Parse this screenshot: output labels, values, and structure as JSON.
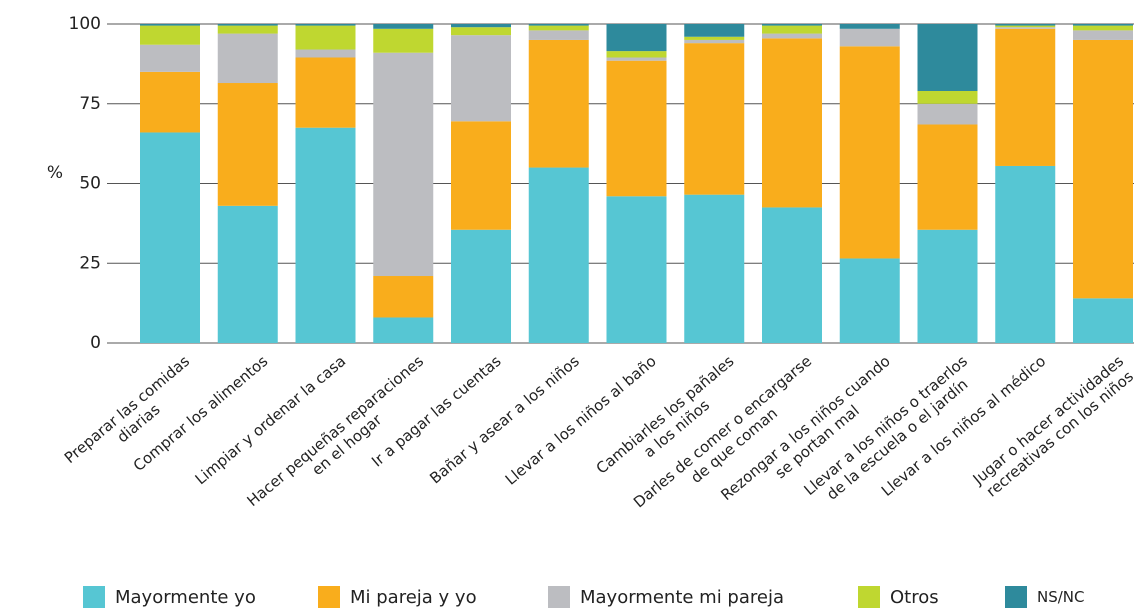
{
  "chart_data": {
    "type": "stacked_bar",
    "y_label": "%",
    "categories": [
      "Preparar las comidas\ndiarias",
      "Comprar los alimentos",
      "Limpiar y ordenar la casa",
      "Hacer pequeñas reparaciones\nen el hogar",
      "Ir a pagar las cuentas",
      "Bañar y asear a los niños",
      "Llevar a los niños al baño",
      "Cambiarles los pañales\na los niños",
      "Darles de comer o encargarse\nde que coman",
      "Rezongar a los niños cuando\nse portan mal",
      "Llevar a los niños o traerlos\nde la escuela o el jardín",
      "Llevar a los niños al médico",
      "Jugar o hacer actividades\nrecreativas con los niños"
    ],
    "series": [
      {
        "name": "Mayormente yo",
        "color": "#56c6d3",
        "values": [
          66,
          43,
          67.5,
          8,
          35.5,
          55,
          46,
          46.5,
          42.5,
          26.5,
          35.5,
          55.5,
          14
        ]
      },
      {
        "name": "Mi pareja y yo",
        "color": "#f9ad1c",
        "values": [
          19,
          38.5,
          22,
          13,
          34,
          40,
          42.5,
          47.5,
          53,
          66.5,
          33,
          43,
          81
        ]
      },
      {
        "name": "Mayormente mi pareja",
        "color": "#bcbdc1",
        "values": [
          8.5,
          15.5,
          2.5,
          70,
          27,
          3,
          1,
          1,
          1.5,
          5.5,
          6.5,
          0.5,
          3
        ]
      },
      {
        "name": "Otros",
        "color": "#bfd730",
        "values": [
          6,
          2.5,
          7.5,
          7.5,
          2.5,
          1.5,
          2,
          1,
          2.5,
          0,
          4,
          0.5,
          1.5
        ]
      },
      {
        "name": "NS/NC",
        "color": "#2e8a9c",
        "values": [
          0.5,
          0.5,
          0.5,
          1.5,
          1,
          0.5,
          8.5,
          4,
          0.5,
          1.5,
          21,
          0.5,
          0.5
        ]
      }
    ],
    "ylim": [
      0,
      100
    ],
    "yticks": [
      0,
      25,
      50,
      75,
      100
    ],
    "grid": true
  }
}
